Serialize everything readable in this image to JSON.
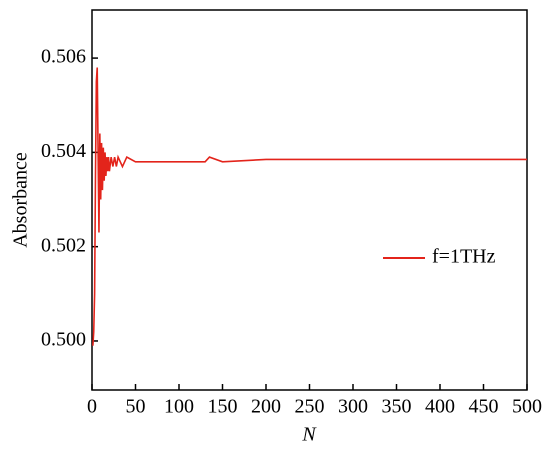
{
  "chart_data": {
    "type": "line",
    "x_label": "N",
    "y_label": "Absorbance",
    "x": [
      1,
      2,
      3,
      4,
      5,
      6,
      7,
      8,
      9,
      10,
      11,
      12,
      13,
      14,
      15,
      16,
      17,
      18,
      19,
      20,
      22,
      24,
      26,
      28,
      30,
      35,
      40,
      50,
      60,
      80,
      100,
      130,
      135,
      150,
      200,
      250,
      300,
      400,
      500
    ],
    "series": [
      {
        "name": "f=1THz",
        "color": "#e3241b",
        "values": [
          0.4999,
          0.5002,
          0.501,
          0.5035,
          0.5055,
          0.5058,
          0.504,
          0.5023,
          0.5044,
          0.503,
          0.5042,
          0.5032,
          0.5041,
          0.5034,
          0.504,
          0.5035,
          0.5039,
          0.5036,
          0.5039,
          0.5036,
          0.5039,
          0.5037,
          0.5039,
          0.5037,
          0.5039,
          0.5037,
          0.5039,
          0.5038,
          0.5038,
          0.5038,
          0.5038,
          0.5038,
          0.5039,
          0.5038,
          0.50385,
          0.50385,
          0.50385,
          0.50385,
          0.50385
        ]
      }
    ],
    "xlim": [
      0,
      500
    ],
    "xticks": [
      0,
      50,
      100,
      150,
      200,
      250,
      300,
      350,
      400,
      450,
      500
    ],
    "ylim": [
      0.49896,
      0.50702
    ],
    "yticks": [
      {
        "value": 0.5,
        "label": "0.500"
      },
      {
        "value": 0.502,
        "label": "0.502"
      },
      {
        "value": 0.504,
        "label": "0.504"
      },
      {
        "value": 0.506,
        "label": "0.506"
      }
    ],
    "legend": "right"
  }
}
